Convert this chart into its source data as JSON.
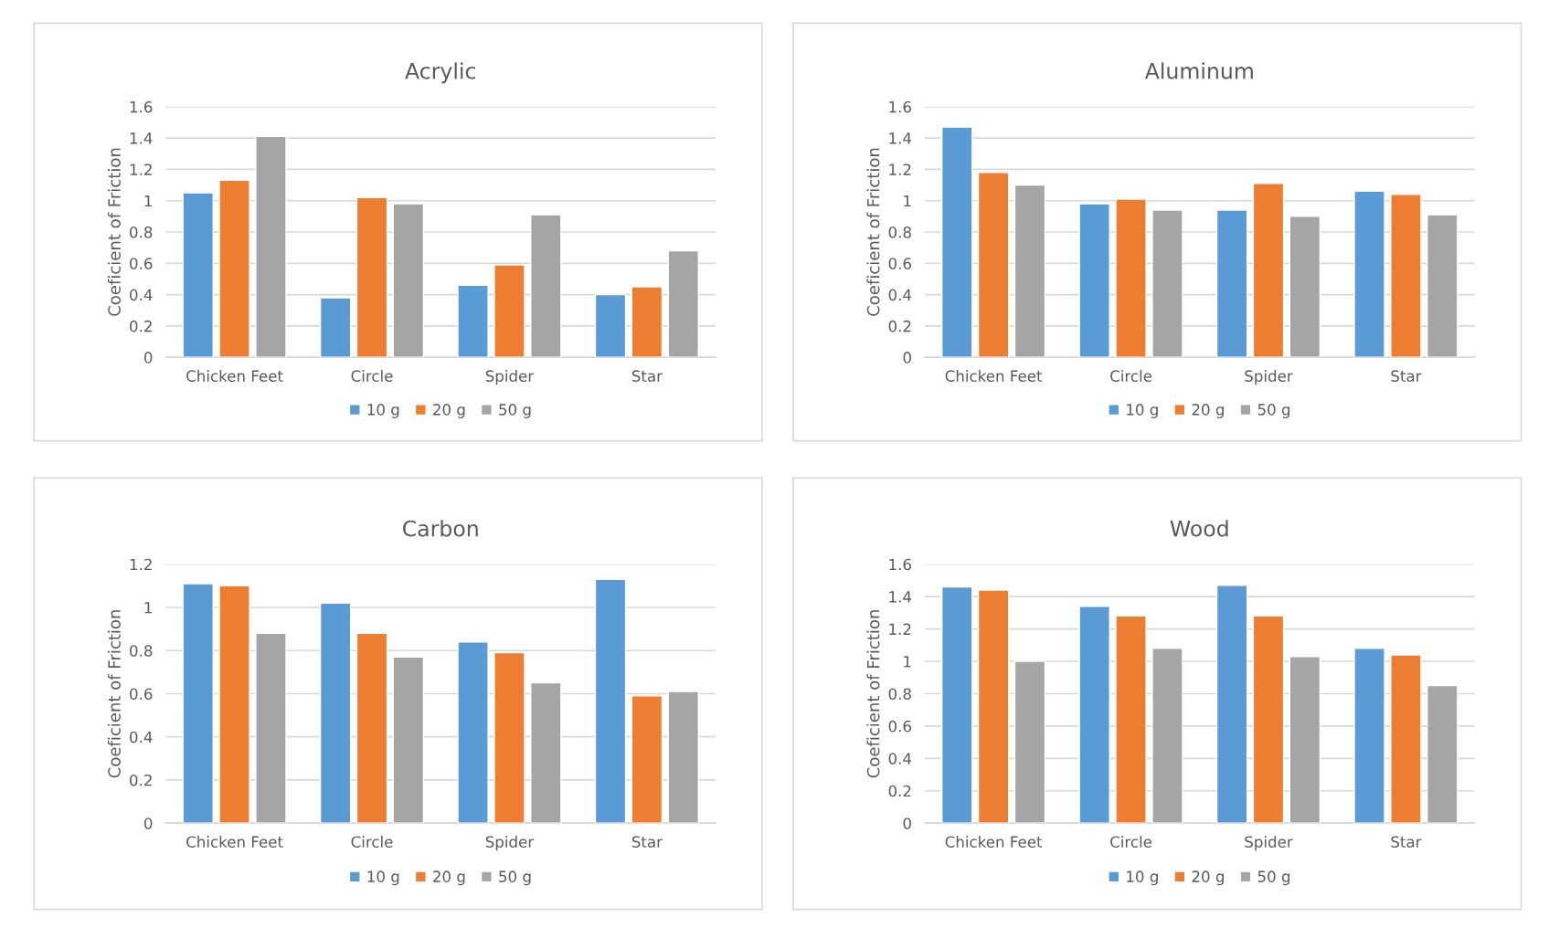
{
  "chart_data": [
    {
      "type": "bar",
      "title": "Acrylic",
      "ylabel": "Coeficient of Friction",
      "categories": [
        "Chicken Feet",
        "Circle",
        "Spider",
        "Star"
      ],
      "series": [
        {
          "name": "10 g",
          "color": "#5b9bd5",
          "values": [
            1.05,
            0.38,
            0.46,
            0.4
          ]
        },
        {
          "name": "20 g",
          "color": "#ed7d31",
          "values": [
            1.13,
            1.02,
            0.59,
            0.45
          ]
        },
        {
          "name": "50 g",
          "color": "#a5a5a5",
          "values": [
            1.41,
            0.98,
            0.91,
            0.68
          ]
        }
      ],
      "ylim": [
        0,
        1.6
      ],
      "yticks": [
        0,
        0.2,
        0.4,
        0.6,
        0.8,
        1,
        1.2,
        1.4,
        1.6
      ],
      "grid": "y",
      "legend": "bottom"
    },
    {
      "type": "bar",
      "title": "Aluminum",
      "ylabel": "Coeficient of Friction",
      "categories": [
        "Chicken Feet",
        "Circle",
        "Spider",
        "Star"
      ],
      "series": [
        {
          "name": "10 g",
          "color": "#5b9bd5",
          "values": [
            1.47,
            0.98,
            0.94,
            1.06
          ]
        },
        {
          "name": "20 g",
          "color": "#ed7d31",
          "values": [
            1.18,
            1.01,
            1.11,
            1.04
          ]
        },
        {
          "name": "50 g",
          "color": "#a5a5a5",
          "values": [
            1.1,
            0.94,
            0.9,
            0.91
          ]
        }
      ],
      "ylim": [
        0,
        1.6
      ],
      "yticks": [
        0,
        0.2,
        0.4,
        0.6,
        0.8,
        1,
        1.2,
        1.4,
        1.6
      ],
      "grid": "y",
      "legend": "bottom"
    },
    {
      "type": "bar",
      "title": "Carbon",
      "ylabel": "Coeficient of Friction",
      "categories": [
        "Chicken Feet",
        "Circle",
        "Spider",
        "Star"
      ],
      "series": [
        {
          "name": "10 g",
          "color": "#5b9bd5",
          "values": [
            1.11,
            1.02,
            0.84,
            1.13
          ]
        },
        {
          "name": "20 g",
          "color": "#ed7d31",
          "values": [
            1.1,
            0.88,
            0.79,
            0.59
          ]
        },
        {
          "name": "50 g",
          "color": "#a5a5a5",
          "values": [
            0.88,
            0.77,
            0.65,
            0.61
          ]
        }
      ],
      "ylim": [
        0,
        1.2
      ],
      "yticks": [
        0,
        0.2,
        0.4,
        0.6,
        0.8,
        1,
        1.2
      ],
      "grid": "y",
      "legend": "bottom"
    },
    {
      "type": "bar",
      "title": "Wood",
      "ylabel": "Coeficient of Friction",
      "categories": [
        "Chicken Feet",
        "Circle",
        "Spider",
        "Star"
      ],
      "series": [
        {
          "name": "10 g",
          "color": "#5b9bd5",
          "values": [
            1.46,
            1.34,
            1.47,
            1.08
          ]
        },
        {
          "name": "20 g",
          "color": "#ed7d31",
          "values": [
            1.44,
            1.28,
            1.28,
            1.04
          ]
        },
        {
          "name": "50 g",
          "color": "#a5a5a5",
          "values": [
            1.0,
            1.08,
            1.03,
            0.85
          ]
        }
      ],
      "ylim": [
        0,
        1.6
      ],
      "yticks": [
        0,
        0.2,
        0.4,
        0.6,
        0.8,
        1,
        1.2,
        1.4,
        1.6
      ],
      "grid": "y",
      "legend": "bottom"
    }
  ]
}
